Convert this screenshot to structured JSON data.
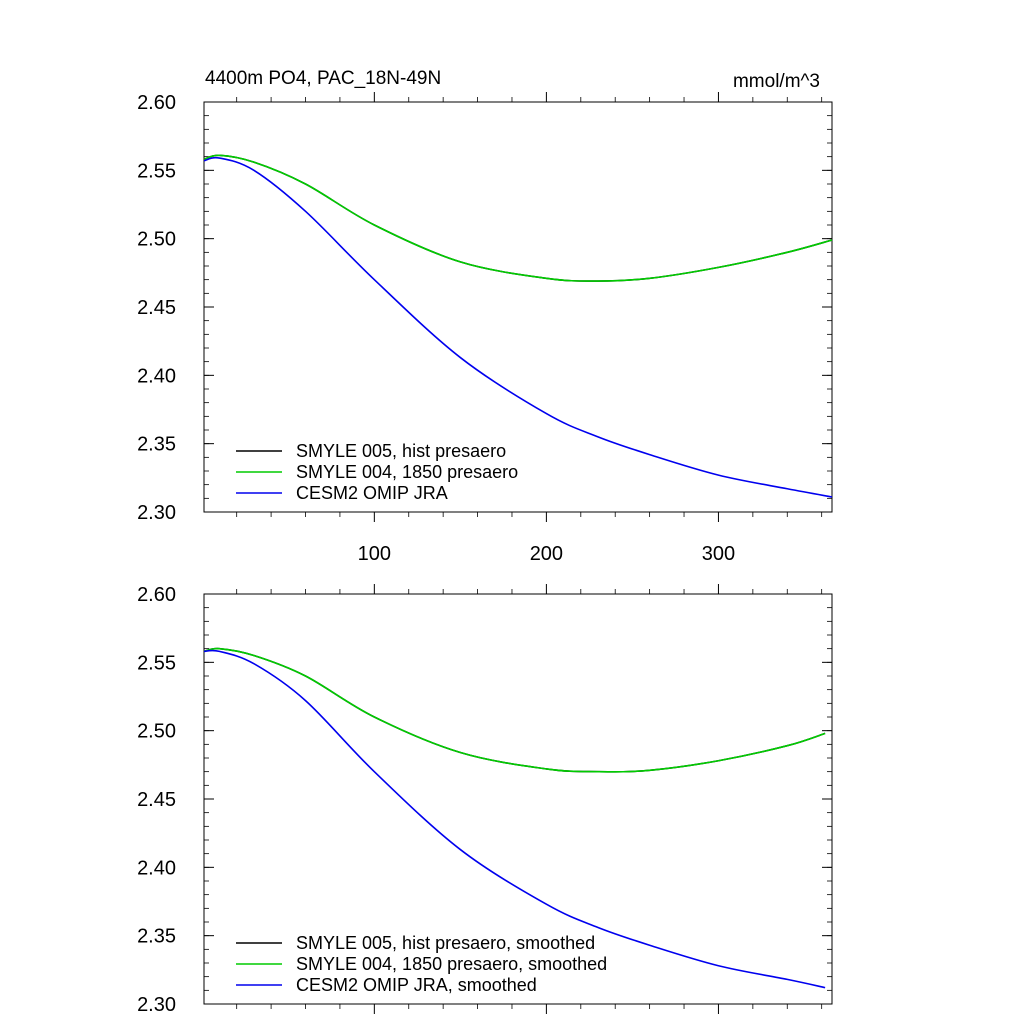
{
  "chart_data": [
    {
      "type": "line",
      "title": "4400m PO4, PAC_18N-49N",
      "units": "mmol/m^3",
      "xlim": [
        1,
        366
      ],
      "ylim": [
        2.3,
        2.6
      ],
      "yticks": [
        "2.60",
        "2.55",
        "2.50",
        "2.45",
        "2.40",
        "2.35",
        "2.30"
      ],
      "xticks": [
        "100",
        "200",
        "300"
      ],
      "legend_position": "bottom-left",
      "series": [
        {
          "name": "SMYLE 005, hist presaero",
          "color": "#000000",
          "x": [
            1,
            10,
            30,
            60,
            100,
            150,
            200,
            230,
            260,
            300,
            340,
            366
          ],
          "y": [
            2.558,
            2.561,
            2.556,
            2.54,
            2.51,
            2.483,
            2.471,
            2.469,
            2.471,
            2.479,
            2.49,
            2.499
          ]
        },
        {
          "name": "SMYLE 004, 1850 presaero",
          "color": "#00cc00",
          "x": [
            1,
            10,
            30,
            60,
            100,
            150,
            200,
            230,
            260,
            300,
            340,
            366
          ],
          "y": [
            2.558,
            2.561,
            2.556,
            2.54,
            2.51,
            2.483,
            2.471,
            2.469,
            2.471,
            2.479,
            2.49,
            2.499
          ]
        },
        {
          "name": "CESM2 OMIP JRA",
          "color": "#0000ee",
          "x": [
            1,
            10,
            30,
            60,
            100,
            150,
            200,
            230,
            260,
            300,
            340,
            366
          ],
          "y": [
            2.557,
            2.559,
            2.55,
            2.52,
            2.47,
            2.413,
            2.372,
            2.355,
            2.342,
            2.327,
            2.317,
            2.311
          ]
        }
      ]
    },
    {
      "type": "line",
      "title": "",
      "units": "",
      "xlim": [
        1,
        366
      ],
      "ylim": [
        2.3,
        2.6
      ],
      "yticks": [
        "2.60",
        "2.55",
        "2.50",
        "2.45",
        "2.40",
        "2.35",
        "2.30"
      ],
      "xticks": [],
      "legend_position": "bottom-left",
      "series": [
        {
          "name": "SMYLE 005, hist presaero, smoothed",
          "color": "#000000",
          "x": [
            1,
            10,
            30,
            60,
            100,
            150,
            200,
            230,
            260,
            300,
            340,
            362
          ],
          "y": [
            2.558,
            2.56,
            2.555,
            2.54,
            2.51,
            2.484,
            2.472,
            2.47,
            2.471,
            2.478,
            2.489,
            2.498
          ]
        },
        {
          "name": "SMYLE 004, 1850 presaero, smoothed",
          "color": "#00cc00",
          "x": [
            1,
            10,
            30,
            60,
            100,
            150,
            200,
            230,
            260,
            300,
            340,
            362
          ],
          "y": [
            2.558,
            2.56,
            2.555,
            2.54,
            2.51,
            2.484,
            2.472,
            2.47,
            2.471,
            2.478,
            2.489,
            2.498
          ]
        },
        {
          "name": "CESM2 OMIP JRA, smoothed",
          "color": "#0000ee",
          "x": [
            1,
            10,
            30,
            60,
            100,
            150,
            200,
            230,
            260,
            300,
            340,
            362
          ],
          "y": [
            2.558,
            2.558,
            2.549,
            2.522,
            2.47,
            2.413,
            2.373,
            2.356,
            2.343,
            2.328,
            2.318,
            2.312
          ]
        }
      ]
    }
  ]
}
